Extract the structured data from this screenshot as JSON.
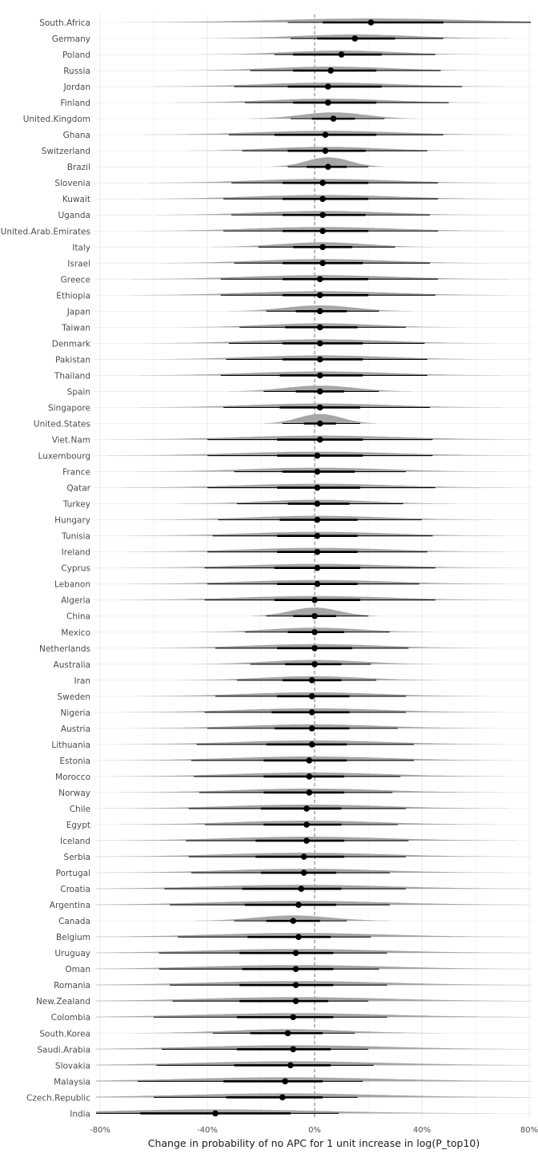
{
  "chart_data": {
    "type": "interval",
    "xlabel": "Change in probability of no APC for 1 unit increase in log(P_top10)",
    "x_ticks": [
      "-80%",
      "-40%",
      "0%",
      "40%",
      "80%"
    ],
    "x_tick_values": [
      -80,
      -40,
      0,
      40,
      80
    ],
    "xlim": [
      -83,
      82
    ],
    "reference_line": 0,
    "grid": true,
    "colors": {
      "density": "#a6a6a6",
      "interval": "#000000",
      "point": "#000000",
      "grid": "#ebebeb",
      "reference": "#555555"
    },
    "countries": [
      {
        "name": "South.Africa",
        "median": 21,
        "i66": [
          3,
          48
        ],
        "i95": [
          -10,
          82
        ],
        "spread": 35
      },
      {
        "name": "Germany",
        "median": 15,
        "i66": [
          1,
          30
        ],
        "i95": [
          -9,
          48
        ],
        "spread": 22
      },
      {
        "name": "Poland",
        "median": 10,
        "i66": [
          -8,
          25
        ],
        "i95": [
          -15,
          45
        ],
        "spread": 20
      },
      {
        "name": "Russia",
        "median": 6,
        "i66": [
          -8,
          23
        ],
        "i95": [
          -24,
          47
        ],
        "spread": 22
      },
      {
        "name": "Jordan",
        "median": 5,
        "i66": [
          -10,
          25
        ],
        "i95": [
          -30,
          55
        ],
        "spread": 25
      },
      {
        "name": "Finland",
        "median": 5,
        "i66": [
          -8,
          23
        ],
        "i95": [
          -26,
          50
        ],
        "spread": 22
      },
      {
        "name": "United.Kingdom",
        "median": 7,
        "i66": [
          -1,
          15
        ],
        "i95": [
          -9,
          26
        ],
        "spread": 12
      },
      {
        "name": "Ghana",
        "median": 4,
        "i66": [
          -15,
          23
        ],
        "i95": [
          -32,
          48
        ],
        "spread": 26
      },
      {
        "name": "Switzerland",
        "median": 4,
        "i66": [
          -10,
          19
        ],
        "i95": [
          -27,
          42
        ],
        "spread": 20
      },
      {
        "name": "Brazil",
        "median": 5,
        "i66": [
          -3,
          12
        ],
        "i95": [
          -10,
          20
        ],
        "spread": 8
      },
      {
        "name": "Slovenia",
        "median": 3,
        "i66": [
          -12,
          20
        ],
        "i95": [
          -31,
          46
        ],
        "spread": 25
      },
      {
        "name": "Kuwait",
        "median": 3,
        "i66": [
          -12,
          20
        ],
        "i95": [
          -34,
          46
        ],
        "spread": 26
      },
      {
        "name": "Uganda",
        "median": 3,
        "i66": [
          -12,
          19
        ],
        "i95": [
          -31,
          43
        ],
        "spread": 24
      },
      {
        "name": "United.Arab.Emirates",
        "median": 3,
        "i66": [
          -12,
          20
        ],
        "i95": [
          -34,
          46
        ],
        "spread": 26
      },
      {
        "name": "Italy",
        "median": 3,
        "i66": [
          -8,
          14
        ],
        "i95": [
          -21,
          30
        ],
        "spread": 16
      },
      {
        "name": "Israel",
        "median": 3,
        "i66": [
          -12,
          18
        ],
        "i95": [
          -30,
          43
        ],
        "spread": 24
      },
      {
        "name": "Greece",
        "median": 2,
        "i66": [
          -12,
          20
        ],
        "i95": [
          -35,
          46
        ],
        "spread": 27
      },
      {
        "name": "Ethiopia",
        "median": 2,
        "i66": [
          -12,
          20
        ],
        "i95": [
          -35,
          45
        ],
        "spread": 27
      },
      {
        "name": "Japan",
        "median": 2,
        "i66": [
          -7,
          12
        ],
        "i95": [
          -18,
          24
        ],
        "spread": 13
      },
      {
        "name": "Taiwan",
        "median": 2,
        "i66": [
          -11,
          16
        ],
        "i95": [
          -28,
          34
        ],
        "spread": 20
      },
      {
        "name": "Denmark",
        "median": 2,
        "i66": [
          -12,
          18
        ],
        "i95": [
          -32,
          41
        ],
        "spread": 25
      },
      {
        "name": "Pakistan",
        "median": 2,
        "i66": [
          -12,
          18
        ],
        "i95": [
          -33,
          42
        ],
        "spread": 25
      },
      {
        "name": "Thailand",
        "median": 2,
        "i66": [
          -13,
          18
        ],
        "i95": [
          -35,
          42
        ],
        "spread": 26
      },
      {
        "name": "Spain",
        "median": 2,
        "i66": [
          -7,
          11
        ],
        "i95": [
          -19,
          24
        ],
        "spread": 13
      },
      {
        "name": "Singapore",
        "median": 2,
        "i66": [
          -13,
          17
        ],
        "i95": [
          -34,
          43
        ],
        "spread": 26
      },
      {
        "name": "United.States",
        "median": 2,
        "i66": [
          -4,
          8
        ],
        "i95": [
          -12,
          17
        ],
        "spread": 8
      },
      {
        "name": "Viet.Nam",
        "median": 2,
        "i66": [
          -14,
          18
        ],
        "i95": [
          -40,
          44
        ],
        "spread": 30
      },
      {
        "name": "Luxembourg",
        "median": 1,
        "i66": [
          -14,
          18
        ],
        "i95": [
          -40,
          44
        ],
        "spread": 30
      },
      {
        "name": "France",
        "median": 1,
        "i66": [
          -12,
          15
        ],
        "i95": [
          -30,
          34
        ],
        "spread": 26
      },
      {
        "name": "Qatar",
        "median": 1,
        "i66": [
          -14,
          17
        ],
        "i95": [
          -40,
          45
        ],
        "spread": 28
      },
      {
        "name": "Turkey",
        "median": 1,
        "i66": [
          -10,
          13
        ],
        "i95": [
          -29,
          33
        ],
        "spread": 20
      },
      {
        "name": "Hungary",
        "median": 1,
        "i66": [
          -13,
          16
        ],
        "i95": [
          -36,
          40
        ],
        "spread": 25
      },
      {
        "name": "Tunisia",
        "median": 1,
        "i66": [
          -14,
          16
        ],
        "i95": [
          -38,
          44
        ],
        "spread": 27
      },
      {
        "name": "Ireland",
        "median": 1,
        "i66": [
          -14,
          16
        ],
        "i95": [
          -40,
          42
        ],
        "spread": 27
      },
      {
        "name": "Cyprus",
        "median": 1,
        "i66": [
          -15,
          17
        ],
        "i95": [
          -41,
          45
        ],
        "spread": 28
      },
      {
        "name": "Lebanon",
        "median": 1,
        "i66": [
          -14,
          16
        ],
        "i95": [
          -40,
          39
        ],
        "spread": 27
      },
      {
        "name": "Algeria",
        "median": 0,
        "i66": [
          -15,
          17
        ],
        "i95": [
          -41,
          45
        ],
        "spread": 28
      },
      {
        "name": "China",
        "median": 0,
        "i66": [
          -8,
          8
        ],
        "i95": [
          -18,
          20
        ],
        "spread": 9
      },
      {
        "name": "Mexico",
        "median": 0,
        "i66": [
          -10,
          11
        ],
        "i95": [
          -26,
          28
        ],
        "spread": 17
      },
      {
        "name": "Netherlands",
        "median": 0,
        "i66": [
          -14,
          14
        ],
        "i95": [
          -37,
          35
        ],
        "spread": 25
      },
      {
        "name": "Australia",
        "median": 0,
        "i66": [
          -11,
          10
        ],
        "i95": [
          -24,
          21
        ],
        "spread": 18
      },
      {
        "name": "Iran",
        "median": -1,
        "i66": [
          -12,
          10
        ],
        "i95": [
          -29,
          23
        ],
        "spread": 19
      },
      {
        "name": "Sweden",
        "median": -1,
        "i66": [
          -14,
          13
        ],
        "i95": [
          -37,
          34
        ],
        "spread": 25
      },
      {
        "name": "Nigeria",
        "median": -1,
        "i66": [
          -16,
          13
        ],
        "i95": [
          -41,
          34
        ],
        "spread": 27
      },
      {
        "name": "Austria",
        "median": -1,
        "i66": [
          -15,
          13
        ],
        "i95": [
          -40,
          31
        ],
        "spread": 26
      },
      {
        "name": "Lithuania",
        "median": -1,
        "i66": [
          -18,
          12
        ],
        "i95": [
          -44,
          37
        ],
        "spread": 28
      },
      {
        "name": "Estonia",
        "median": -2,
        "i66": [
          -19,
          12
        ],
        "i95": [
          -46,
          37
        ],
        "spread": 29
      },
      {
        "name": "Morocco",
        "median": -2,
        "i66": [
          -19,
          11
        ],
        "i95": [
          -45,
          32
        ],
        "spread": 28
      },
      {
        "name": "Norway",
        "median": -2,
        "i66": [
          -19,
          11
        ],
        "i95": [
          -43,
          29
        ],
        "spread": 27
      },
      {
        "name": "Chile",
        "median": -3,
        "i66": [
          -20,
          10
        ],
        "i95": [
          -47,
          34
        ],
        "spread": 29
      },
      {
        "name": "Egypt",
        "median": -3,
        "i66": [
          -19,
          10
        ],
        "i95": [
          -41,
          31
        ],
        "spread": 27
      },
      {
        "name": "Iceland",
        "median": -3,
        "i66": [
          -22,
          11
        ],
        "i95": [
          -48,
          35
        ],
        "spread": 30
      },
      {
        "name": "Serbia",
        "median": -4,
        "i66": [
          -22,
          11
        ],
        "i95": [
          -47,
          34
        ],
        "spread": 30
      },
      {
        "name": "Portugal",
        "median": -4,
        "i66": [
          -20,
          8
        ],
        "i95": [
          -46,
          28
        ],
        "spread": 29
      },
      {
        "name": "Croatia",
        "median": -5,
        "i66": [
          -27,
          10
        ],
        "i95": [
          -56,
          34
        ],
        "spread": 33
      },
      {
        "name": "Argentina",
        "median": -6,
        "i66": [
          -26,
          8
        ],
        "i95": [
          -54,
          28
        ],
        "spread": 33
      },
      {
        "name": "Canada",
        "median": -8,
        "i66": [
          -18,
          2
        ],
        "i95": [
          -30,
          12
        ],
        "spread": 14
      },
      {
        "name": "Belgium",
        "median": -6,
        "i66": [
          -25,
          6
        ],
        "i95": [
          -51,
          21
        ],
        "spread": 32
      },
      {
        "name": "Uruguay",
        "median": -7,
        "i66": [
          -28,
          7
        ],
        "i95": [
          -58,
          27
        ],
        "spread": 34
      },
      {
        "name": "Oman",
        "median": -7,
        "i66": [
          -27,
          7
        ],
        "i95": [
          -58,
          24
        ],
        "spread": 34
      },
      {
        "name": "Romania",
        "median": -7,
        "i66": [
          -28,
          7
        ],
        "i95": [
          -54,
          27
        ],
        "spread": 34
      },
      {
        "name": "New.Zealand",
        "median": -7,
        "i66": [
          -28,
          5
        ],
        "i95": [
          -53,
          20
        ],
        "spread": 34
      },
      {
        "name": "Colombia",
        "median": -8,
        "i66": [
          -29,
          7
        ],
        "i95": [
          -60,
          27
        ],
        "spread": 35
      },
      {
        "name": "South.Korea",
        "median": -10,
        "i66": [
          -24,
          3
        ],
        "i95": [
          -38,
          15
        ],
        "spread": 22
      },
      {
        "name": "Saudi.Arabia",
        "median": -8,
        "i66": [
          -29,
          6
        ],
        "i95": [
          -57,
          20
        ],
        "spread": 35
      },
      {
        "name": "Slovakia",
        "median": -9,
        "i66": [
          -30,
          6
        ],
        "i95": [
          -59,
          22
        ],
        "spread": 36
      },
      {
        "name": "Malaysia",
        "median": -11,
        "i66": [
          -34,
          3
        ],
        "i95": [
          -66,
          18
        ],
        "spread": 38
      },
      {
        "name": "Czech.Republic",
        "median": -12,
        "i66": [
          -33,
          3
        ],
        "i95": [
          -60,
          16
        ],
        "spread": 37
      },
      {
        "name": "India",
        "median": -37,
        "i66": [
          -65,
          -9
        ],
        "i95": [
          -83,
          9
        ],
        "spread": 40
      }
    ]
  }
}
